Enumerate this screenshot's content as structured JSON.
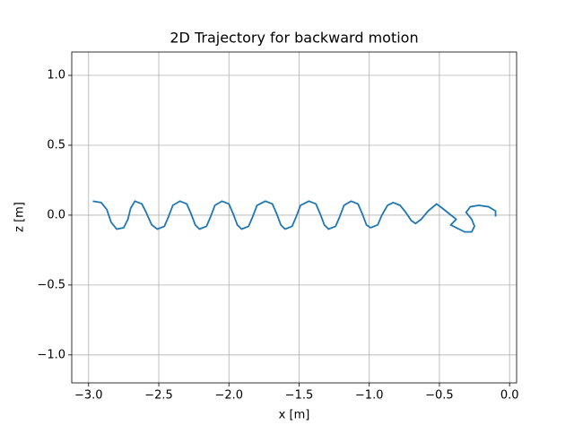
{
  "chart_data": {
    "type": "line",
    "title": "2D Trajectory for backward motion",
    "x_label": "x [m]",
    "y_label": "z [m]",
    "x": [
      -2.97,
      -2.91,
      -2.87,
      -2.84,
      -2.8,
      -2.75,
      -2.72,
      -2.7,
      -2.67,
      -2.62,
      -2.59,
      -2.55,
      -2.51,
      -2.46,
      -2.43,
      -2.4,
      -2.35,
      -2.3,
      -2.27,
      -2.24,
      -2.21,
      -2.16,
      -2.13,
      -2.1,
      -2.05,
      -2.0,
      -1.97,
      -1.94,
      -1.91,
      -1.86,
      -1.83,
      -1.8,
      -1.74,
      -1.69,
      -1.66,
      -1.63,
      -1.6,
      -1.55,
      -1.52,
      -1.49,
      -1.43,
      -1.38,
      -1.35,
      -1.32,
      -1.29,
      -1.24,
      -1.21,
      -1.18,
      -1.13,
      -1.08,
      -1.05,
      -1.02,
      -0.99,
      -0.94,
      -0.91,
      -0.87,
      -0.83,
      -0.78,
      -0.74,
      -0.7,
      -0.67,
      -0.63,
      -0.58,
      -0.52,
      -0.48,
      -0.43,
      -0.38,
      -0.42,
      -0.38,
      -0.32,
      -0.27,
      -0.25,
      -0.27,
      -0.31,
      -0.28,
      -0.22,
      -0.15,
      -0.1,
      -0.1
    ],
    "series": [
      {
        "color": "#1f77b4",
        "values": [
          0.1,
          0.09,
          0.04,
          -0.05,
          -0.1,
          -0.09,
          -0.03,
          0.05,
          0.1,
          0.08,
          0.02,
          -0.07,
          -0.1,
          -0.08,
          -0.01,
          0.07,
          0.1,
          0.08,
          0.01,
          -0.07,
          -0.1,
          -0.08,
          -0.01,
          0.07,
          0.1,
          0.08,
          0.01,
          -0.07,
          -0.1,
          -0.08,
          -0.01,
          0.07,
          0.1,
          0.08,
          0.01,
          -0.07,
          -0.1,
          -0.08,
          -0.01,
          0.07,
          0.1,
          0.08,
          0.01,
          -0.07,
          -0.1,
          -0.08,
          -0.01,
          0.07,
          0.1,
          0.08,
          0.01,
          -0.07,
          -0.09,
          -0.07,
          0.0,
          0.07,
          0.09,
          0.07,
          0.02,
          -0.04,
          -0.06,
          -0.03,
          0.03,
          0.08,
          0.05,
          0.01,
          -0.03,
          -0.07,
          -0.09,
          -0.12,
          -0.12,
          -0.08,
          -0.03,
          0.02,
          0.06,
          0.07,
          0.06,
          0.03,
          -0.01
        ]
      }
    ],
    "xlim": [
      -3.12,
      0.05
    ],
    "ylim": [
      -1.2,
      1.167
    ],
    "xticks": [
      {
        "value": -3.0,
        "label": "−3.0"
      },
      {
        "value": -2.5,
        "label": "−2.5"
      },
      {
        "value": -2.0,
        "label": "−2.0"
      },
      {
        "value": -1.5,
        "label": "−1.5"
      },
      {
        "value": -1.0,
        "label": "−1.0"
      },
      {
        "value": -0.5,
        "label": "−0.5"
      },
      {
        "value": 0.0,
        "label": "0.0"
      }
    ],
    "yticks": [
      {
        "value": -1.0,
        "label": "−1.0"
      },
      {
        "value": -0.5,
        "label": "−0.5"
      },
      {
        "value": 0.0,
        "label": "0.0"
      },
      0.5,
      {
        "value": 1.0,
        "label": "1.0"
      }
    ],
    "grid": true
  }
}
